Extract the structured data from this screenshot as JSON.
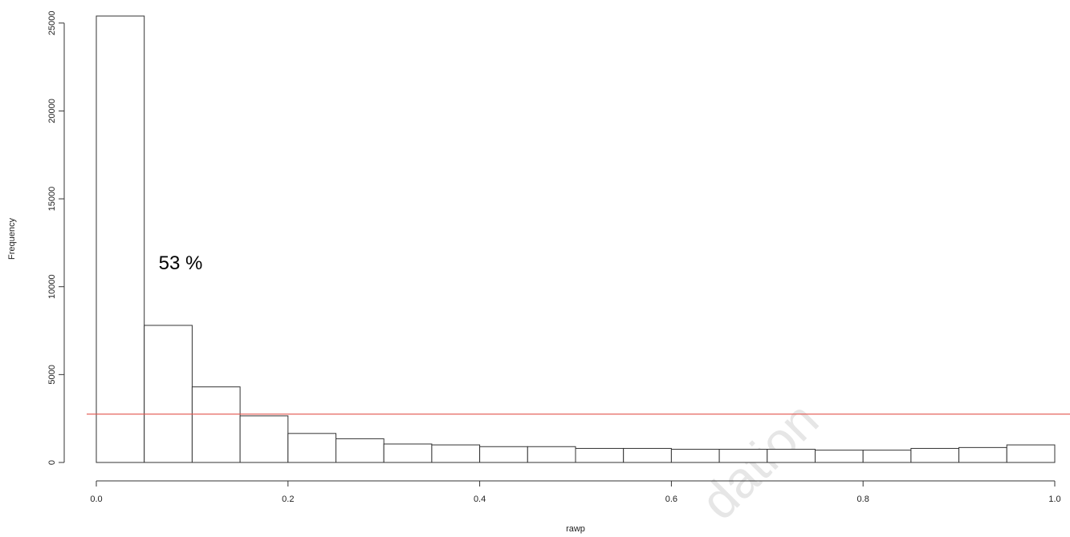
{
  "chart_data": {
    "type": "bar",
    "subtype": "histogram",
    "xlabel": "rawp",
    "ylabel": "Frequency",
    "xlim": [
      0,
      1
    ],
    "ylim": [
      0,
      25500
    ],
    "xticks": [
      "0.0",
      "0.2",
      "0.4",
      "0.6",
      "0.8",
      "1.0"
    ],
    "yticks": [
      "0",
      "5000",
      "10000",
      "15000",
      "20000",
      "25000"
    ],
    "bin_width": 0.05,
    "bins": [
      {
        "x0": 0.0,
        "x1": 0.05,
        "count": 25400
      },
      {
        "x0": 0.05,
        "x1": 0.1,
        "count": 7800
      },
      {
        "x0": 0.1,
        "x1": 0.15,
        "count": 4300
      },
      {
        "x0": 0.15,
        "x1": 0.2,
        "count": 2650
      },
      {
        "x0": 0.2,
        "x1": 0.25,
        "count": 1650
      },
      {
        "x0": 0.25,
        "x1": 0.3,
        "count": 1350
      },
      {
        "x0": 0.3,
        "x1": 0.35,
        "count": 1050
      },
      {
        "x0": 0.35,
        "x1": 0.4,
        "count": 1000
      },
      {
        "x0": 0.4,
        "x1": 0.45,
        "count": 900
      },
      {
        "x0": 0.45,
        "x1": 0.5,
        "count": 900
      },
      {
        "x0": 0.5,
        "x1": 0.55,
        "count": 800
      },
      {
        "x0": 0.55,
        "x1": 0.6,
        "count": 800
      },
      {
        "x0": 0.6,
        "x1": 0.65,
        "count": 750
      },
      {
        "x0": 0.65,
        "x1": 0.7,
        "count": 750
      },
      {
        "x0": 0.7,
        "x1": 0.75,
        "count": 750
      },
      {
        "x0": 0.75,
        "x1": 0.8,
        "count": 700
      },
      {
        "x0": 0.8,
        "x1": 0.85,
        "count": 700
      },
      {
        "x0": 0.85,
        "x1": 0.9,
        "count": 800
      },
      {
        "x0": 0.9,
        "x1": 0.95,
        "count": 850
      },
      {
        "x0": 0.95,
        "x1": 1.0,
        "count": 1000
      }
    ],
    "reference_line": {
      "y": 2750,
      "color": "#e3554e"
    },
    "annotation": {
      "text": "53 %",
      "x": 0.065,
      "y": 11000
    },
    "watermark": "dation",
    "bar_fill": "#ffffff",
    "bar_stroke": "#333333",
    "grid": false
  }
}
